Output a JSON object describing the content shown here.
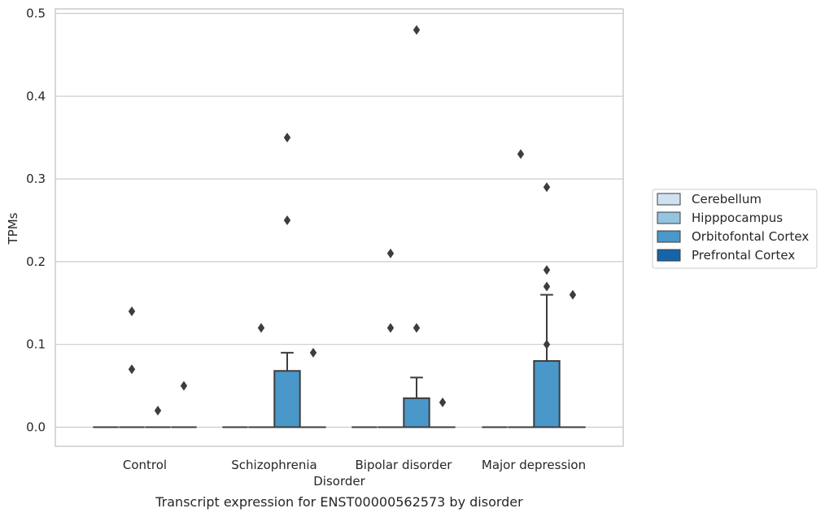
{
  "chart_data": {
    "type": "box",
    "title": "",
    "caption": "Transcript expression for ENST00000562573 by disorder",
    "xlabel": "Disorder",
    "ylabel": "TPMs",
    "ylim": [
      -0.023,
      0.505
    ],
    "yticks": [
      "0.0",
      "0.1",
      "0.2",
      "0.3",
      "0.4",
      "0.5"
    ],
    "ytick_values": [
      0,
      0.1,
      0.2,
      0.3,
      0.4,
      0.5
    ],
    "grid": "horizontal",
    "legend_position": "right",
    "categories": [
      "Control",
      "Schizophrenia",
      "Bipolar disorder",
      "Major depression"
    ],
    "series": [
      {
        "name": "Cerebellum",
        "color": "#d0e1f2",
        "boxes": [
          {
            "q1": 0,
            "median": 0,
            "q3": 0,
            "whisker_low": 0,
            "whisker_high": 0,
            "outliers": []
          },
          {
            "q1": 0,
            "median": 0,
            "q3": 0,
            "whisker_low": 0,
            "whisker_high": 0,
            "outliers": []
          },
          {
            "q1": 0,
            "median": 0,
            "q3": 0,
            "whisker_low": 0,
            "whisker_high": 0,
            "outliers": []
          },
          {
            "q1": 0,
            "median": 0,
            "q3": 0,
            "whisker_low": 0,
            "whisker_high": 0,
            "outliers": []
          }
        ]
      },
      {
        "name": "Hipppocampus",
        "color": "#94c4df",
        "boxes": [
          {
            "q1": 0,
            "median": 0,
            "q3": 0,
            "whisker_low": 0,
            "whisker_high": 0,
            "outliers": [
              0.14,
              0.07
            ]
          },
          {
            "q1": 0,
            "median": 0,
            "q3": 0,
            "whisker_low": 0,
            "whisker_high": 0,
            "outliers": [
              0.12
            ]
          },
          {
            "q1": 0,
            "median": 0,
            "q3": 0,
            "whisker_low": 0,
            "whisker_high": 0,
            "outliers": [
              0.21,
              0.12
            ]
          },
          {
            "q1": 0,
            "median": 0,
            "q3": 0,
            "whisker_low": 0,
            "whisker_high": 0,
            "outliers": [
              0.33
            ]
          }
        ]
      },
      {
        "name": "Orbitofontal Cortex",
        "color": "#4a98c9",
        "boxes": [
          {
            "q1": 0,
            "median": 0,
            "q3": 0,
            "whisker_low": 0,
            "whisker_high": 0,
            "outliers": [
              0.02
            ]
          },
          {
            "q1": 0,
            "median": 0,
            "q3": 0.068,
            "whisker_low": 0,
            "whisker_high": 0.09,
            "outliers": [
              0.35,
              0.25
            ]
          },
          {
            "q1": 0,
            "median": 0,
            "q3": 0.035,
            "whisker_low": 0,
            "whisker_high": 0.06,
            "outliers": [
              0.48,
              0.12
            ]
          },
          {
            "q1": 0,
            "median": 0,
            "q3": 0.08,
            "whisker_low": 0,
            "whisker_high": 0.16,
            "outliers": [
              0.19,
              0.17,
              0.1,
              0.29
            ]
          }
        ]
      },
      {
        "name": "Prefrontal Cortex",
        "color": "#1764ab",
        "boxes": [
          {
            "q1": 0,
            "median": 0,
            "q3": 0,
            "whisker_low": 0,
            "whisker_high": 0,
            "outliers": [
              0.05
            ]
          },
          {
            "q1": 0,
            "median": 0,
            "q3": 0,
            "whisker_low": 0,
            "whisker_high": 0,
            "outliers": [
              0.09
            ]
          },
          {
            "q1": 0,
            "median": 0,
            "q3": 0,
            "whisker_low": 0,
            "whisker_high": 0,
            "outliers": [
              0.03
            ]
          },
          {
            "q1": 0,
            "median": 0,
            "q3": 0,
            "whisker_low": 0,
            "whisker_high": 0,
            "outliers": [
              0.16
            ]
          }
        ]
      }
    ]
  }
}
